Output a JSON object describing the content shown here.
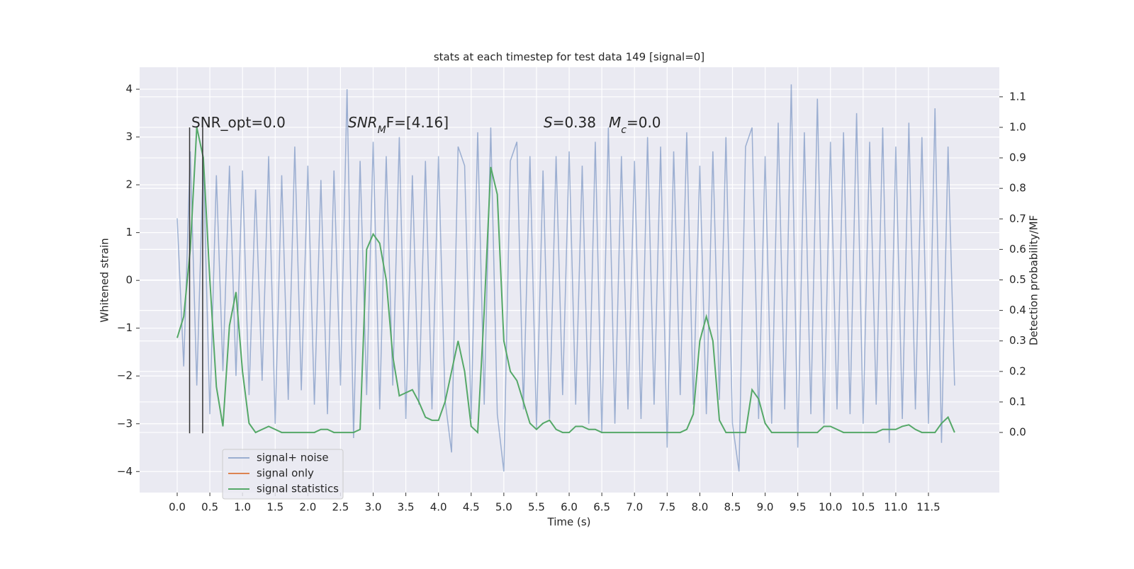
{
  "chart_data": {
    "type": "line",
    "title": "stats at each timestep for test data 149 [signal=0]",
    "xlabel": "Time (s)",
    "ylabel": "Whitened strain",
    "y2label": "Detection probability/MF",
    "x": [
      0,
      0.1,
      0.2,
      0.3,
      0.4,
      0.5,
      0.6,
      0.7,
      0.8,
      0.9,
      1.0,
      1.1,
      1.2,
      1.3,
      1.4,
      1.5,
      1.6,
      1.7,
      1.8,
      1.9,
      2.0,
      2.1,
      2.2,
      2.3,
      2.4,
      2.5,
      2.6,
      2.7,
      2.8,
      2.9,
      3.0,
      3.1,
      3.2,
      3.3,
      3.4,
      3.5,
      3.6,
      3.7,
      3.8,
      3.9,
      4.0,
      4.1,
      4.2,
      4.3,
      4.4,
      4.5,
      4.6,
      4.7,
      4.8,
      4.9,
      5.0,
      5.1,
      5.2,
      5.3,
      5.4,
      5.5,
      5.6,
      5.7,
      5.8,
      5.9,
      6.0,
      6.1,
      6.2,
      6.3,
      6.4,
      6.5,
      6.6,
      6.7,
      6.8,
      6.9,
      7.0,
      7.1,
      7.2,
      7.3,
      7.4,
      7.5,
      7.6,
      7.7,
      7.8,
      7.9,
      8.0,
      8.1,
      8.2,
      8.3,
      8.4,
      8.5,
      8.6,
      8.7,
      8.8,
      8.9,
      9.0,
      9.1,
      9.2,
      9.3,
      9.4,
      9.5,
      9.6,
      9.7,
      9.8,
      9.9,
      10.0,
      10.1,
      10.2,
      10.3,
      10.4,
      10.5,
      10.6,
      10.7,
      10.8,
      10.9,
      11.0,
      11.1,
      11.2,
      11.3,
      11.4,
      11.5,
      11.6,
      11.7,
      11.8,
      11.9
    ],
    "series": [
      {
        "name": "signal+ noise",
        "color": "#4c72b0",
        "alpha": 0.5,
        "values": [
          1.3,
          -1.8,
          2.7,
          -2.2,
          2.5,
          -2.8,
          2.2,
          -1.9,
          2.4,
          -2.0,
          2.3,
          -2.4,
          1.9,
          -2.1,
          2.6,
          -3.0,
          2.2,
          -2.5,
          2.8,
          -2.3,
          2.4,
          -2.6,
          2.1,
          -2.8,
          2.3,
          -2.2,
          4.0,
          -3.3,
          2.5,
          -2.4,
          2.9,
          -2.7,
          2.6,
          -2.2,
          3.0,
          -2.9,
          2.2,
          -2.6,
          2.5,
          -2.7,
          2.6,
          -2.5,
          -3.6,
          2.8,
          2.4,
          -2.9,
          3.1,
          -2.6,
          3.2,
          -2.8,
          -4.0,
          2.5,
          2.9,
          -2.7,
          2.6,
          -3.1,
          2.3,
          -2.9,
          2.6,
          -2.4,
          2.7,
          -2.6,
          2.4,
          -3.0,
          2.9,
          -3.2,
          3.2,
          -3.0,
          2.6,
          -2.7,
          2.5,
          -2.9,
          3.0,
          -2.6,
          2.8,
          -3.5,
          2.7,
          -2.4,
          3.1,
          -2.6,
          2.4,
          -2.8,
          2.7,
          -2.5,
          3.0,
          -3.0,
          -4.0,
          2.8,
          3.2,
          -2.9,
          2.6,
          -3.0,
          3.3,
          -2.7,
          4.1,
          -3.5,
          3.1,
          -2.8,
          3.8,
          -3.0,
          2.9,
          -2.7,
          3.1,
          -2.8,
          3.5,
          -3.0,
          2.9,
          -2.6,
          3.2,
          -3.4,
          2.8,
          -2.9,
          3.3,
          -2.7,
          3.0,
          -3.0,
          3.6,
          -3.4,
          2.8,
          -2.2
        ]
      },
      {
        "name": "signal only",
        "color": "#dd8452",
        "values": [
          null,
          null,
          null,
          null,
          null,
          null,
          null,
          null,
          null,
          null,
          null,
          null,
          null,
          null,
          null,
          null,
          null,
          null,
          null,
          null,
          null,
          null,
          null,
          null,
          null,
          null,
          null,
          null,
          null,
          null,
          null,
          null,
          null,
          null,
          null,
          null,
          null,
          null,
          null,
          null,
          null,
          null,
          null,
          null,
          null,
          null,
          null,
          null,
          null,
          null,
          null,
          null,
          null,
          null,
          null,
          null,
          null,
          null,
          null,
          null,
          null,
          null,
          null,
          null,
          null,
          null,
          null,
          null,
          null,
          null,
          null,
          null,
          null,
          null,
          null,
          null,
          null,
          null,
          null,
          null,
          null,
          null,
          null,
          null,
          null,
          null,
          null,
          null,
          null,
          null,
          null,
          null,
          null,
          null,
          null,
          null,
          null,
          null,
          null,
          null,
          null,
          null,
          null,
          null,
          null,
          null,
          null,
          null,
          null,
          null,
          null,
          null,
          null,
          null,
          null,
          null,
          null,
          null,
          null,
          null
        ]
      },
      {
        "name": "signal statistics",
        "color": "#55a868",
        "axis": "y2",
        "values": [
          0.31,
          0.38,
          0.6,
          1.0,
          0.9,
          0.5,
          0.15,
          0.02,
          0.35,
          0.46,
          0.2,
          0.03,
          0.0,
          0.01,
          0.02,
          0.01,
          0.0,
          0.0,
          0.0,
          0.0,
          0.0,
          0.0,
          0.01,
          0.01,
          0.0,
          0.0,
          0.0,
          0.0,
          0.01,
          0.6,
          0.65,
          0.62,
          0.5,
          0.25,
          0.12,
          0.13,
          0.14,
          0.1,
          0.05,
          0.04,
          0.04,
          0.1,
          0.2,
          0.3,
          0.2,
          0.02,
          0.0,
          0.4,
          0.87,
          0.78,
          0.3,
          0.2,
          0.17,
          0.1,
          0.03,
          0.01,
          0.03,
          0.04,
          0.01,
          0.0,
          0.0,
          0.02,
          0.02,
          0.01,
          0.01,
          0.0,
          0.0,
          0.0,
          0.0,
          0.0,
          0.0,
          0.0,
          0.0,
          0.0,
          0.0,
          0.0,
          0.0,
          0.0,
          0.01,
          0.06,
          0.3,
          0.38,
          0.3,
          0.04,
          0.0,
          0.0,
          0.0,
          0.0,
          0.14,
          0.11,
          0.03,
          0.0,
          0.0,
          0.0,
          0.0,
          0.0,
          0.0,
          0.0,
          0.0,
          0.02,
          0.02,
          0.01,
          0.0,
          0.0,
          0.0,
          0.0,
          0.0,
          0.0,
          0.01,
          0.01,
          0.01,
          0.02,
          0.025,
          0.01,
          0.0,
          0.0,
          0.0,
          0.03,
          0.05,
          0.0
        ]
      }
    ],
    "vlines": {
      "x": [
        0.19,
        0.39
      ],
      "ymin": -3.2,
      "ymax": 3.2,
      "color": "#333333"
    },
    "annotations": [
      [
        {
          "text": "SNR_opt=0.0"
        }
      ],
      [
        {
          "text": "SNR",
          "italic": true
        },
        {
          "text": "M",
          "italic": true,
          "sub": true
        },
        {
          "text": "F=[4.16]",
          "italic": false
        }
      ],
      [
        {
          "text": "S",
          "italic": true
        },
        {
          "text": "=0.38"
        }
      ],
      [
        {
          "text": "M",
          "italic": true
        },
        {
          "text": "c",
          "italic": true,
          "sub": true
        },
        {
          "text": "=0.0"
        }
      ]
    ],
    "xlim": [
      -0.575,
      12.585
    ],
    "ylim": [
      -4.44,
      4.46
    ],
    "y2lim": [
      -0.197,
      1.197
    ],
    "xticks": [
      {
        "value": 0,
        "label": "0.0"
      },
      {
        "value": 0.5,
        "label": "0.5"
      },
      {
        "value": 1,
        "label": "1.0"
      },
      {
        "value": 1.5,
        "label": "1.5"
      },
      {
        "value": 2,
        "label": "2.0"
      },
      {
        "value": 2.5,
        "label": "2.5"
      },
      {
        "value": 3,
        "label": "3.0"
      },
      {
        "value": 3.5,
        "label": "3.5"
      },
      {
        "value": 4,
        "label": "4.0"
      },
      {
        "value": 4.5,
        "label": "4.5"
      },
      {
        "value": 5,
        "label": "5.0"
      },
      {
        "value": 5.5,
        "label": "5.5"
      },
      {
        "value": 6,
        "label": "6.0"
      },
      {
        "value": 6.5,
        "label": "6.5"
      },
      {
        "value": 7,
        "label": "7.0"
      },
      {
        "value": 7.5,
        "label": "7.5"
      },
      {
        "value": 8,
        "label": "8.0"
      },
      {
        "value": 8.5,
        "label": "8.5"
      },
      {
        "value": 9,
        "label": "9.0"
      },
      {
        "value": 9.5,
        "label": "9.5"
      },
      {
        "value": 10,
        "label": "10.0"
      },
      {
        "value": 10.5,
        "label": "10.5"
      },
      {
        "value": 11,
        "label": "11.0"
      },
      {
        "value": 11.5,
        "label": "11.5"
      }
    ],
    "yticks": [
      {
        "value": -4,
        "label": "−4"
      },
      {
        "value": -3,
        "label": "−3"
      },
      {
        "value": -2,
        "label": "−2"
      },
      {
        "value": -1,
        "label": "−1"
      },
      0,
      1,
      2,
      3,
      4
    ],
    "y2ticks": [
      {
        "value": 0,
        "label": "0.0"
      },
      {
        "value": 0.1,
        "label": "0.1"
      },
      {
        "value": 0.2,
        "label": "0.2"
      },
      {
        "value": 0.3,
        "label": "0.3"
      },
      {
        "value": 0.4,
        "label": "0.4"
      },
      {
        "value": 0.5,
        "label": "0.5"
      },
      {
        "value": 0.6,
        "label": "0.6"
      },
      {
        "value": 0.7,
        "label": "0.7"
      },
      {
        "value": 0.8,
        "label": "0.8"
      },
      {
        "value": 0.9,
        "label": "0.9"
      },
      {
        "value": 1,
        "label": "1.0"
      },
      {
        "value": 1.1,
        "label": "1.1"
      }
    ],
    "grid": true,
    "background": "#eaeaf2",
    "legend": "lower left"
  }
}
